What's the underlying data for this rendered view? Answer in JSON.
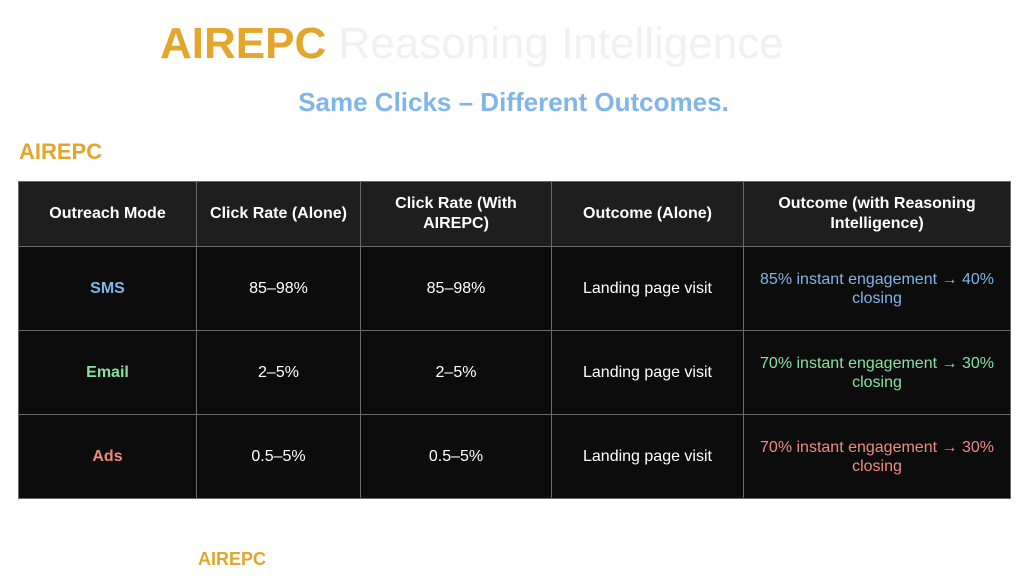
{
  "header": {
    "brand": "AIREPC",
    "tagline": "Reasoning Intelligence",
    "subtitle": "Same Clicks – Different Outcomes."
  },
  "section": {
    "brand": "AIREPC",
    "caption": ""
  },
  "table": {
    "columns": [
      "Outreach Mode",
      "Click Rate (Alone)",
      "Click Rate (With AIREPC)",
      "Outcome (Alone)",
      "Outcome (with Reasoning Intelligence)"
    ],
    "rows": [
      {
        "mode": "SMS",
        "click_alone": "85–98%",
        "click_with": "85–98%",
        "outcome_alone": "Landing page visit",
        "outcome_ri": "85% instant engagement → 40% closing",
        "color": "#7fb5ea"
      },
      {
        "mode": "Email",
        "click_alone": "2–5%",
        "click_with": "2–5%",
        "outcome_alone": "Landing page visit",
        "outcome_ri": "70% instant engagement → 30% closing",
        "color": "#86e0a0"
      },
      {
        "mode": "Ads",
        "click_alone": "0.5–5%",
        "click_with": "0.5–5%",
        "outcome_alone": "Landing page visit",
        "outcome_ri": "70% instant engagement → 30% closing",
        "color": "#f08a80"
      }
    ]
  },
  "footer": {
    "brand": "AIREPC",
    "caption": ""
  },
  "colors": {
    "brand": "#e3a52a",
    "subtitle": "#7fb5ea",
    "header_bg": "#1e1e1e",
    "cell_bg": "#0c0c0c"
  }
}
